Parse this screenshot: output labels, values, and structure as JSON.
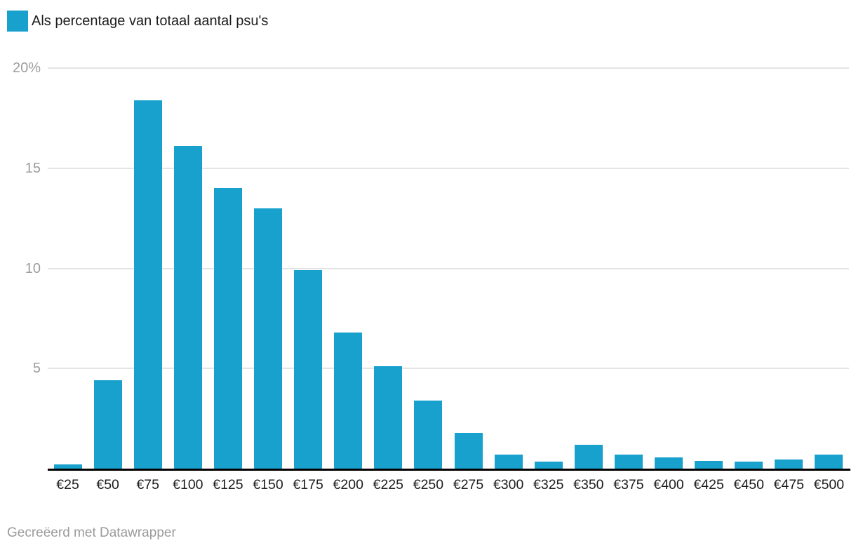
{
  "legend": {
    "label": "Als percentage van totaal aantal psu's",
    "swatch_color": "#18a1cd"
  },
  "footer": {
    "text": "Gecreëerd met Datawrapper"
  },
  "colors": {
    "bar": "#18a1cd",
    "gridline": "#e4e4e4",
    "axis_line": "#000000",
    "x_tick_label": "#1d1d1d",
    "y_tick_label": "#9d9d9d",
    "legend_text": "#1d1d1d",
    "footer_text": "#9b9b9b",
    "background": "#ffffff"
  },
  "chart_data": {
    "type": "bar",
    "title": "",
    "xlabel": "",
    "ylabel": "",
    "series_name": "Als percentage van totaal aantal psu's",
    "categories": [
      "€25",
      "€50",
      "€75",
      "€100",
      "€125",
      "€150",
      "€175",
      "€200",
      "€225",
      "€250",
      "€275",
      "€300",
      "€325",
      "€350",
      "€375",
      "€400",
      "€425",
      "€450",
      "€475",
      "€500"
    ],
    "values": [
      0.2,
      4.4,
      18.4,
      16.1,
      14.0,
      13.0,
      9.9,
      6.8,
      5.1,
      3.4,
      1.8,
      0.7,
      0.35,
      1.2,
      0.7,
      0.55,
      0.4,
      0.35,
      0.45,
      0.7
    ],
    "unit": "%",
    "ylim": [
      0,
      20
    ],
    "yticks": [
      {
        "value": 20,
        "label": "20%"
      },
      {
        "value": 15,
        "label": "15"
      },
      {
        "value": 10,
        "label": "10"
      },
      {
        "value": 5,
        "label": "5"
      }
    ],
    "grid": "horizontal-only",
    "legend_position": "top-left",
    "bar_color": "#18a1cd"
  }
}
